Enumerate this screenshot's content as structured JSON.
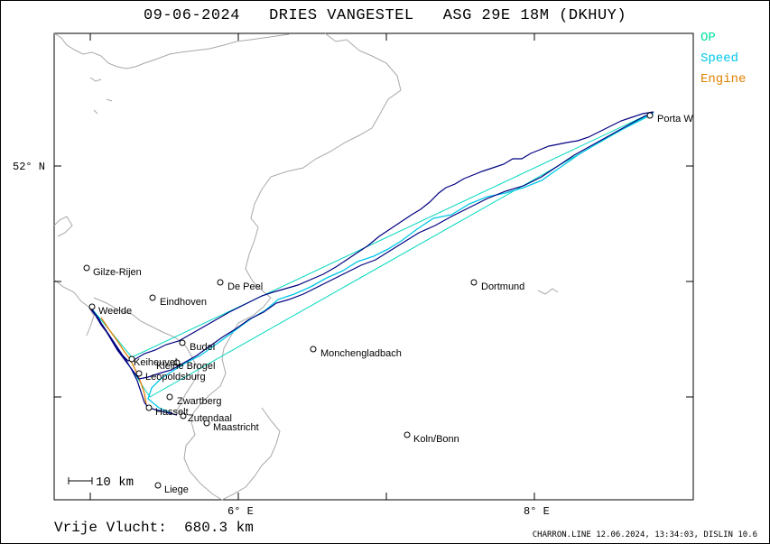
{
  "header": {
    "date": "09-06-2024",
    "pilot": "DRIES VANGESTEL",
    "glider": "ASG 29E 18M (DKHUY)"
  },
  "legend": [
    {
      "label": "OP",
      "color": "#00e0a0"
    },
    {
      "label": "Speed",
      "color": "#00c8e8"
    },
    {
      "label": "Engine",
      "color": "#e08000"
    }
  ],
  "axes": {
    "lat_label": "52° N",
    "lon_labels": [
      "6° E",
      "8° E"
    ]
  },
  "scale_bar": {
    "label": "10 km"
  },
  "places": [
    {
      "name": "Porta Westfalica",
      "shown": "Porta W"
    },
    {
      "name": "Gilze-Rijen"
    },
    {
      "name": "De Peel"
    },
    {
      "name": "Eindhoven"
    },
    {
      "name": "Weelde"
    },
    {
      "name": "Dortmund"
    },
    {
      "name": "Budel"
    },
    {
      "name": "Kleine Brogel"
    },
    {
      "name": "Keiheuvel"
    },
    {
      "name": "Leopoldsburg"
    },
    {
      "name": "Monchengladbach"
    },
    {
      "name": "Zwartberg"
    },
    {
      "name": "Hasselt"
    },
    {
      "name": "Zutendaal"
    },
    {
      "name": "Maastricht"
    },
    {
      "name": "Koln/Bonn"
    },
    {
      "name": "Liege"
    }
  ],
  "footer": {
    "distance_label": "Vrije Vlucht:",
    "distance_value": "680.3 km",
    "credit": "CHARRON.LINE 12.06.2024, 13:34:03, DISLIN 10.6"
  },
  "colors": {
    "track": "#000080",
    "speed": "#00c8e8",
    "op": "#00d8c0",
    "engine": "#e08000",
    "border": "#b0b0b0"
  }
}
